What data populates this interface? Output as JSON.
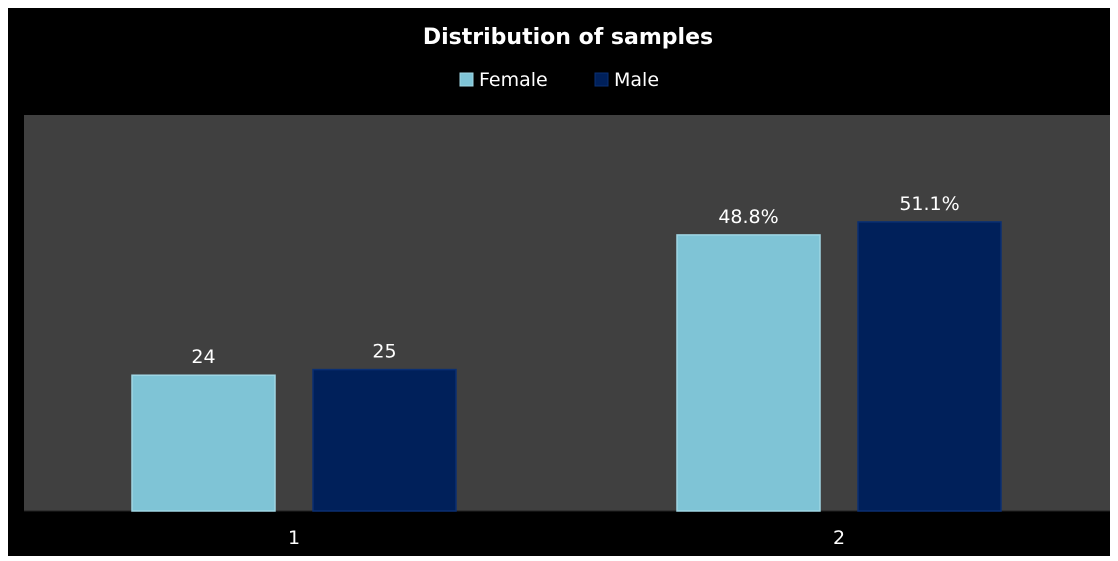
{
  "chart_data": {
    "type": "bar",
    "title": "Distribution of samples",
    "categories": [
      "1",
      "2"
    ],
    "series": [
      {
        "name": "Female",
        "color": "#7fc4d6",
        "values": [
          24,
          48.8
        ],
        "labels": [
          "24",
          "48.8%"
        ]
      },
      {
        "name": "Male",
        "color": "#00205a",
        "values": [
          25,
          51.1
        ],
        "labels": [
          "25",
          "51.1%"
        ]
      }
    ],
    "ylim": [
      0,
      70
    ],
    "grid": false,
    "legend_position": "top-center",
    "plot_background": "#404040",
    "background": "#000000"
  }
}
